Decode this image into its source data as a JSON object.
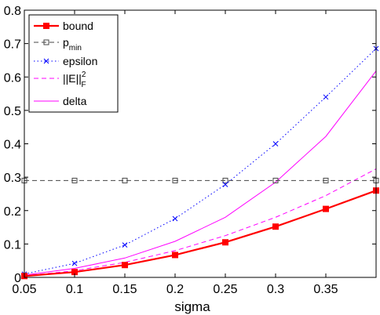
{
  "chart_data": {
    "type": "line",
    "xlabel": "sigma",
    "ylabel": "",
    "title": "",
    "xlim": [
      0.05,
      0.4
    ],
    "ylim": [
      0,
      0.8
    ],
    "grid": false,
    "legend_position": "top-left",
    "x_ticks": [
      "0.05",
      "0.1",
      "0.15",
      "0.2",
      "0.25",
      "0.3",
      "0.35"
    ],
    "y_ticks": [
      "0",
      "0.1",
      "0.2",
      "0.3",
      "0.4",
      "0.5",
      "0.6",
      "0.7",
      "0.8"
    ],
    "x": [
      0.05,
      0.1,
      0.15,
      0.2,
      0.25,
      0.3,
      0.35,
      0.4
    ],
    "series": [
      {
        "name": "bound",
        "color": "#ff0000",
        "line": "solid",
        "marker": "filled-square",
        "values": [
          0.004,
          0.016,
          0.037,
          0.067,
          0.105,
          0.152,
          0.205,
          0.26
        ]
      },
      {
        "name": "p_min",
        "legend_main": "p",
        "legend_sub": "min",
        "color": "#444444",
        "line": "dashed",
        "marker": "open-square",
        "values": [
          0.29,
          0.29,
          0.29,
          0.29,
          0.29,
          0.29,
          0.29,
          0.29
        ]
      },
      {
        "name": "epsilon",
        "color": "#0000ff",
        "line": "dotted",
        "marker": "x",
        "values": [
          0.01,
          0.042,
          0.097,
          0.176,
          0.278,
          0.4,
          0.54,
          0.685
        ]
      },
      {
        "name": "||E||_F^2",
        "legend_main": "||E||",
        "legend_sub": "F",
        "legend_sup": "2",
        "color": "#ff00ff",
        "line": "dashed",
        "marker": "none",
        "x": [
          0.05,
          0.1,
          0.15,
          0.2,
          0.25,
          0.3,
          0.35,
          0.4
        ],
        "values": [
          0.005,
          0.02,
          0.045,
          0.08,
          0.125,
          0.18,
          0.245,
          0.325
        ]
      },
      {
        "name": "delta",
        "color": "#ff00ff",
        "line": "solid",
        "marker": "none",
        "values": [
          0.007,
          0.027,
          0.058,
          0.108,
          0.18,
          0.285,
          0.422,
          0.618
        ]
      }
    ]
  }
}
